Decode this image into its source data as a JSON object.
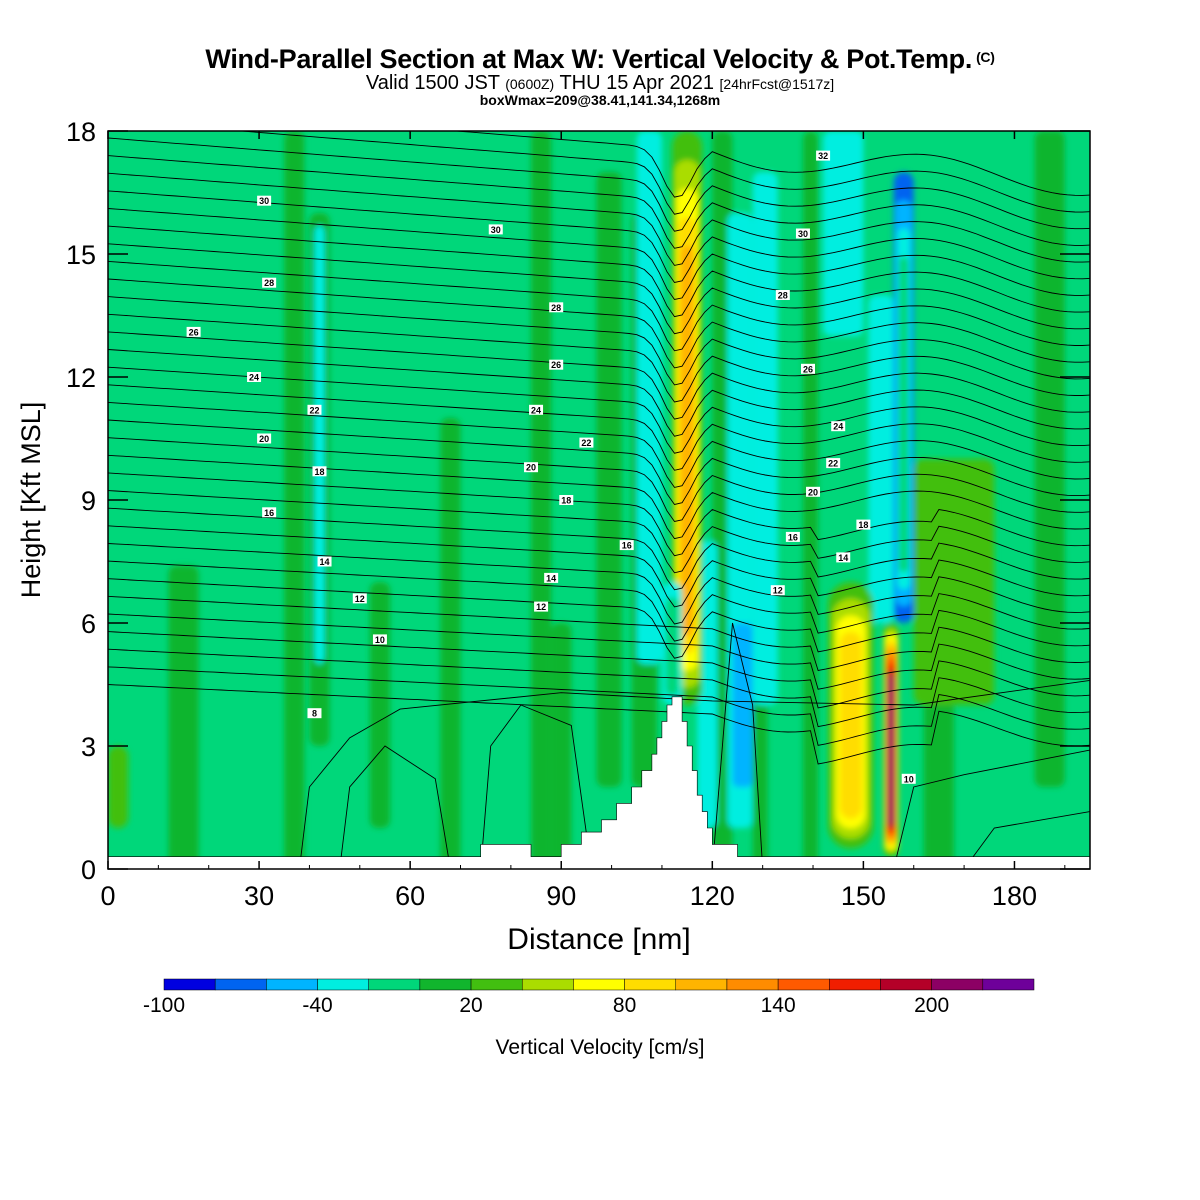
{
  "header": {
    "title": "Wind-Parallel Section at Max W: Vertical Velocity & Pot.Temp.",
    "title_mark": "(C)",
    "valid_prefix": "Valid 1500 JST",
    "valid_utc": "(0600Z)",
    "valid_date": "THU 15 Apr 2021",
    "forecast": "[24hrFcst@1517z]",
    "box_info": "boxWmax=209@38.41,141.34,1268m"
  },
  "colors": {
    "background_field": "#00d77a",
    "terrain": "#ffffff",
    "contour": "#000000"
  },
  "chart_data": {
    "type": "heatmap",
    "title": "Wind-Parallel Section at Max W: Vertical Velocity & Pot.Temp.",
    "xlabel": "Distance [nm]",
    "ylabel": "Height [Kft MSL]",
    "xlim": [
      0,
      195
    ],
    "ylim": [
      0,
      18
    ],
    "x_ticks": [
      0,
      30,
      60,
      90,
      120,
      150,
      180
    ],
    "y_ticks": [
      0,
      3,
      6,
      9,
      12,
      15,
      18
    ],
    "colorbar": {
      "label": "Vertical Velocity [cm/s]",
      "tick_labels": [
        "-100",
        "-40",
        "20",
        "80",
        "140",
        "200"
      ],
      "tick_values": [
        -100,
        -40,
        20,
        80,
        140,
        200
      ],
      "levels": [
        -100,
        -80,
        -60,
        -40,
        -20,
        0,
        20,
        40,
        60,
        80,
        100,
        120,
        140,
        160,
        180,
        200,
        220,
        240
      ],
      "colors": [
        "#0000e0",
        "#0064f0",
        "#00b4ff",
        "#00eee0",
        "#00d77a",
        "#11b52d",
        "#42bf10",
        "#aadd00",
        "#ffff00",
        "#ffdd00",
        "#ffb400",
        "#ff8c00",
        "#ff5a00",
        "#f01e00",
        "#b40028",
        "#8c0064",
        "#6e009a"
      ]
    },
    "features": [
      {
        "name": "updraft",
        "x_range": [
          112,
          118
        ],
        "y_range": [
          4,
          18
        ],
        "w": 100
      },
      {
        "name": "downdraft",
        "x_range": [
          110,
          114
        ],
        "y_range": [
          4,
          7
        ],
        "w": -40
      },
      {
        "name": "updraft",
        "x_range": [
          143,
          152
        ],
        "y_range": [
          0.5,
          7
        ],
        "w": 90
      },
      {
        "name": "max-updraft",
        "x_range": [
          154,
          157
        ],
        "y_range": [
          0.3,
          6
        ],
        "w": 209
      },
      {
        "name": "downdraft",
        "x_range": [
          156,
          160
        ],
        "y_range": [
          6,
          17
        ],
        "w": -90
      }
    ],
    "contour_labels": [
      {
        "text": "30",
        "x": 31,
        "y": 16.3
      },
      {
        "text": "30",
        "x": 77,
        "y": 15.6
      },
      {
        "text": "32",
        "x": 142,
        "y": 17.4
      },
      {
        "text": "30",
        "x": 138,
        "y": 15.5
      },
      {
        "text": "28",
        "x": 32,
        "y": 14.3
      },
      {
        "text": "28",
        "x": 89,
        "y": 13.7
      },
      {
        "text": "28",
        "x": 134,
        "y": 14.0
      },
      {
        "text": "26",
        "x": 17,
        "y": 13.1
      },
      {
        "text": "26",
        "x": 89,
        "y": 12.3
      },
      {
        "text": "26",
        "x": 139,
        "y": 12.2
      },
      {
        "text": "24",
        "x": 29,
        "y": 12.0
      },
      {
        "text": "24",
        "x": 85,
        "y": 11.2
      },
      {
        "text": "24",
        "x": 145,
        "y": 10.8
      },
      {
        "text": "22",
        "x": 41,
        "y": 11.2
      },
      {
        "text": "22",
        "x": 95,
        "y": 10.4
      },
      {
        "text": "22",
        "x": 144,
        "y": 9.9
      },
      {
        "text": "20",
        "x": 31,
        "y": 10.5
      },
      {
        "text": "20",
        "x": 84,
        "y": 9.8
      },
      {
        "text": "20",
        "x": 140,
        "y": 9.2
      },
      {
        "text": "18",
        "x": 42,
        "y": 9.7
      },
      {
        "text": "18",
        "x": 91,
        "y": 9.0
      },
      {
        "text": "18",
        "x": 150,
        "y": 8.4
      },
      {
        "text": "16",
        "x": 32,
        "y": 8.7
      },
      {
        "text": "16",
        "x": 103,
        "y": 7.9
      },
      {
        "text": "16",
        "x": 136,
        "y": 8.1
      },
      {
        "text": "14",
        "x": 43,
        "y": 7.5
      },
      {
        "text": "14",
        "x": 88,
        "y": 7.1
      },
      {
        "text": "14",
        "x": 146,
        "y": 7.6
      },
      {
        "text": "12",
        "x": 50,
        "y": 6.6
      },
      {
        "text": "12",
        "x": 86,
        "y": 6.4
      },
      {
        "text": "12",
        "x": 133,
        "y": 6.8
      },
      {
        "text": "10",
        "x": 54,
        "y": 5.6
      },
      {
        "text": "10",
        "x": 159,
        "y": 2.2
      },
      {
        "text": "8",
        "x": 41,
        "y": 3.8
      }
    ]
  }
}
